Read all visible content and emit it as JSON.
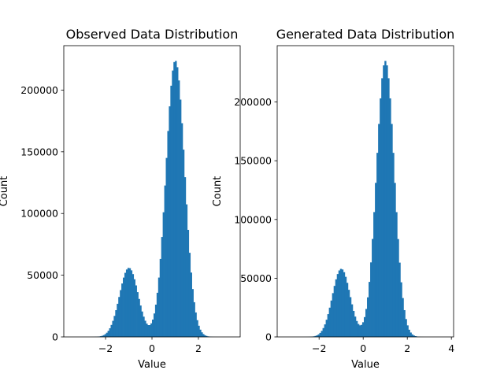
{
  "chart_data": [
    {
      "type": "bar",
      "title": "Observed Data Distribution",
      "xlabel": "Value",
      "ylabel": "Count",
      "xlim": [
        -3.8,
        3.8
      ],
      "ylim": [
        0,
        236000
      ],
      "xticks": [
        -2,
        0,
        2
      ],
      "yticks": [
        0,
        50000,
        100000,
        150000,
        200000
      ],
      "ytick_labels": [
        "0",
        "50000",
        "100000",
        "150000",
        "200000"
      ],
      "xtick_labels": [
        "−2",
        "0",
        "2"
      ],
      "bar_color": "#1f77b4",
      "histogram": {
        "shape": "bimodal",
        "components": [
          {
            "mean": -1.0,
            "std": 0.4,
            "peak": 56000
          },
          {
            "mean": 1.0,
            "std": 0.4,
            "peak": 224000
          }
        ],
        "x_range": [
          -3.3,
          3.3
        ],
        "bins": 100
      }
    },
    {
      "type": "bar",
      "title": "Generated Data Distribution",
      "xlabel": "Value",
      "ylabel": "Count",
      "xlim": [
        -3.9,
        4.1
      ],
      "ylim": [
        0,
        248000
      ],
      "xticks": [
        -2,
        0,
        2,
        4
      ],
      "yticks": [
        0,
        50000,
        100000,
        150000,
        200000
      ],
      "ytick_labels": [
        "0",
        "50000",
        "100000",
        "150000",
        "200000"
      ],
      "xtick_labels": [
        "−2",
        "0",
        "2",
        "4"
      ],
      "bar_color": "#1f77b4",
      "histogram": {
        "shape": "bimodal",
        "components": [
          {
            "mean": -1.0,
            "std": 0.4,
            "peak": 58000
          },
          {
            "mean": 1.0,
            "std": 0.4,
            "peak": 235000
          }
        ],
        "x_range": [
          -3.5,
          3.7
        ],
        "bins": 100
      }
    }
  ]
}
